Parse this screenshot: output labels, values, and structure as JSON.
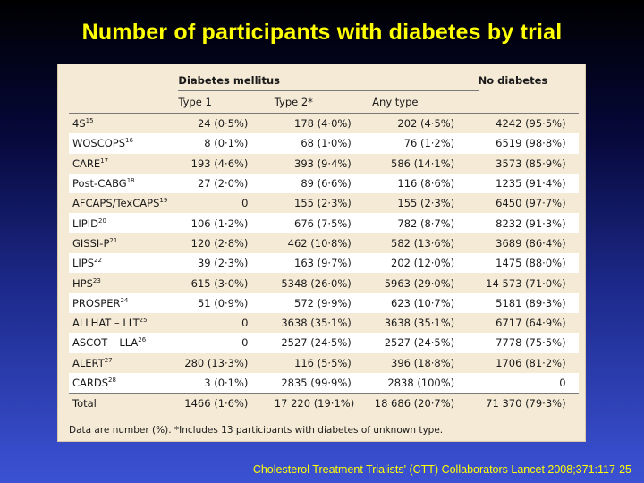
{
  "title": "Number of participants with diabetes by trial",
  "table": {
    "group_header": "Diabetes mellitus",
    "no_diabetes_header": "No diabetes",
    "subheaders": [
      "Type 1",
      "Type 2*",
      "Any type"
    ],
    "rows": [
      {
        "trial": "4S",
        "ref": "15",
        "type1": "24 (0·5%)",
        "type2": "178 (4·0%)",
        "any": "202 (4·5%)",
        "none": "4242 (95·5%)"
      },
      {
        "trial": "WOSCOPS",
        "ref": "16",
        "type1": "8 (0·1%)",
        "type2": "68 (1·0%)",
        "any": "76 (1·2%)",
        "none": "6519 (98·8%)"
      },
      {
        "trial": "CARE",
        "ref": "17",
        "type1": "193 (4·6%)",
        "type2": "393 (9·4%)",
        "any": "586 (14·1%)",
        "none": "3573 (85·9%)"
      },
      {
        "trial": "Post-CABG",
        "ref": "18",
        "type1": "27 (2·0%)",
        "type2": "89 (6·6%)",
        "any": "116 (8·6%)",
        "none": "1235 (91·4%)"
      },
      {
        "trial": "AFCAPS/TexCAPS",
        "ref": "19",
        "type1": "0",
        "type2": "155 (2·3%)",
        "any": "155 (2·3%)",
        "none": "6450 (97·7%)"
      },
      {
        "trial": "LIPID",
        "ref": "20",
        "type1": "106 (1·2%)",
        "type2": "676 (7·5%)",
        "any": "782 (8·7%)",
        "none": "8232 (91·3%)"
      },
      {
        "trial": "GISSI-P",
        "ref": "21",
        "type1": "120 (2·8%)",
        "type2": "462 (10·8%)",
        "any": "582 (13·6%)",
        "none": "3689 (86·4%)"
      },
      {
        "trial": "LIPS",
        "ref": "22",
        "type1": "39 (2·3%)",
        "type2": "163 (9·7%)",
        "any": "202 (12·0%)",
        "none": "1475 (88·0%)"
      },
      {
        "trial": "HPS",
        "ref": "23",
        "type1": "615 (3·0%)",
        "type2": "5348 (26·0%)",
        "any": "5963 (29·0%)",
        "none": "14 573 (71·0%)"
      },
      {
        "trial": "PROSPER",
        "ref": "24",
        "type1": "51 (0·9%)",
        "type2": "572 (9·9%)",
        "any": "623 (10·7%)",
        "none": "5181 (89·3%)"
      },
      {
        "trial": "ALLHAT – LLT",
        "ref": "25",
        "type1": "0",
        "type2": "3638 (35·1%)",
        "any": "3638 (35·1%)",
        "none": "6717 (64·9%)"
      },
      {
        "trial": "ASCOT – LLA",
        "ref": "26",
        "type1": "0",
        "type2": "2527 (24·5%)",
        "any": "2527 (24·5%)",
        "none": "7778 (75·5%)"
      },
      {
        "trial": "ALERT",
        "ref": "27",
        "type1": "280 (13·3%)",
        "type2": "116 (5·5%)",
        "any": "396 (18·8%)",
        "none": "1706 (81·2%)"
      },
      {
        "trial": "CARDS",
        "ref": "28",
        "type1": "3 (0·1%)",
        "type2": "2835 (99·9%)",
        "any": "2838 (100%)",
        "none": "0"
      }
    ],
    "total": {
      "trial": "Total",
      "type1": "1466 (1·6%)",
      "type2": "17 220 (19·1%)",
      "any": "18 686 (20·7%)",
      "none": "71 370 (79·3%)"
    },
    "note": "Data are number (%). *Includes 13 participants with diabetes of unknown type."
  },
  "footer": "Cholesterol Treatment Trialists' (CTT) Collaborators Lancet 2008;371:117-25",
  "colors": {
    "title": "#ffff00",
    "panel": "#f5ead6",
    "row_alt": "#ffffff"
  }
}
